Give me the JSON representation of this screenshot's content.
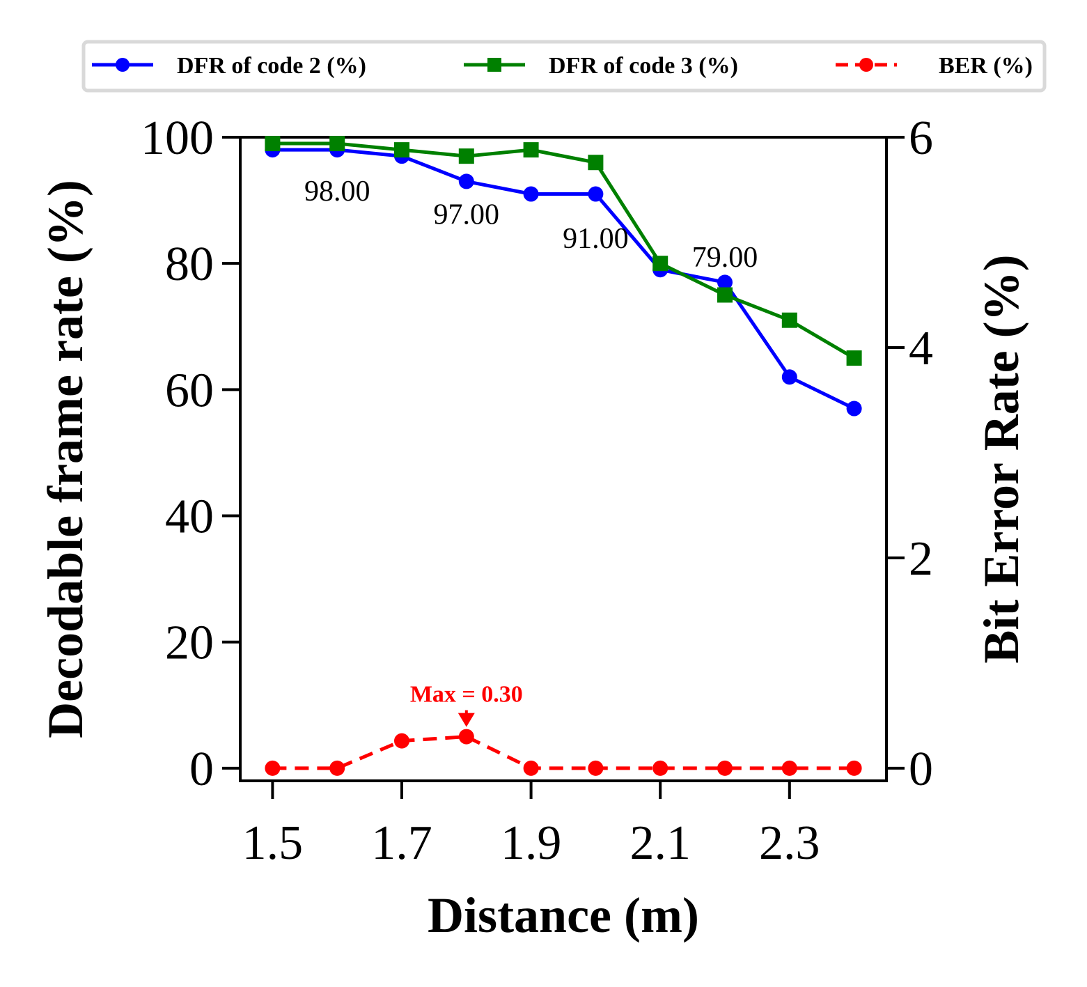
{
  "chart_data": {
    "type": "line",
    "x": [
      1.5,
      1.6,
      1.7,
      1.8,
      1.9,
      2.0,
      2.1,
      2.2,
      2.3,
      2.4
    ],
    "x_ticks": [
      "1.5",
      "1.7",
      "1.9",
      "2.1",
      "2.3"
    ],
    "x_tick_values": [
      1.5,
      1.7,
      1.9,
      2.1,
      2.3
    ],
    "xlim": [
      1.45,
      2.45
    ],
    "xlabel": "Distance (m)",
    "ylabel_left": "Decodable frame rate (%)",
    "ylim_left": [
      -2,
      100
    ],
    "y_ticks_left": [
      "0",
      "20",
      "40",
      "60",
      "80",
      "100"
    ],
    "y_tick_values_left": [
      0,
      20,
      40,
      60,
      80,
      100
    ],
    "ylabel_right": "Bit Error Rate (%)",
    "ylim_right": [
      -0.12,
      6.0
    ],
    "y_ticks_right": [
      "0",
      "2",
      "4",
      "6"
    ],
    "y_tick_values_right": [
      0,
      2,
      4,
      6
    ],
    "series": [
      {
        "name": "DFR of code 2 (%)",
        "axis": "left",
        "color": "#0000ff",
        "marker": "circle",
        "line": "solid",
        "values": [
          98,
          98,
          97,
          93,
          91,
          91,
          79,
          77,
          62,
          57
        ]
      },
      {
        "name": "DFR of code 3 (%)",
        "axis": "left",
        "color": "#008000",
        "marker": "square",
        "line": "solid",
        "values": [
          99,
          99,
          98,
          97,
          98,
          96,
          80,
          75,
          71,
          65
        ]
      },
      {
        "name": "BER (%)",
        "axis": "right",
        "color": "#ff0000",
        "marker": "circle",
        "line": "dashed",
        "values": [
          0,
          0,
          0.26,
          0.3,
          0,
          0,
          0,
          0,
          0,
          0
        ]
      }
    ],
    "data_labels": [
      {
        "text": "98.00",
        "x": 1.6,
        "y": 91.5
      },
      {
        "text": "97.00",
        "x": 1.8,
        "y": 87.8
      },
      {
        "text": "91.00",
        "x": 2.0,
        "y": 84.0
      },
      {
        "text": "79.00",
        "x": 2.2,
        "y": 81.0
      }
    ],
    "annotation": {
      "text": "Max = 0.30",
      "x": 1.8,
      "y_right": 0.3,
      "color": "#ff0000"
    },
    "legend": {
      "placement": "top",
      "columns": 3
    },
    "grid": false
  }
}
